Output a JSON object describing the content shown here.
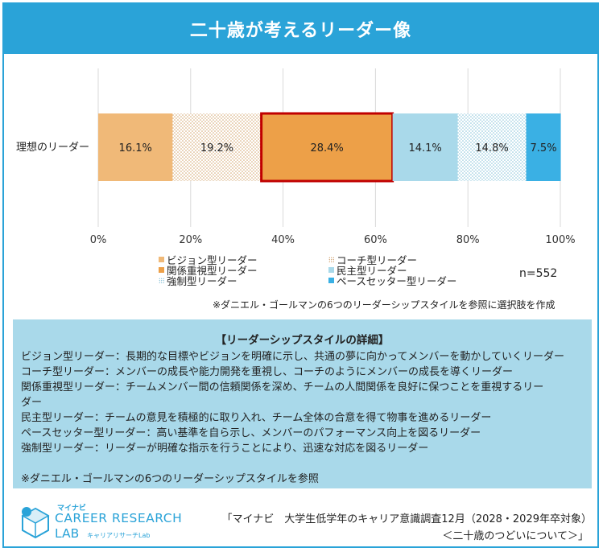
{
  "header": {
    "title": "二十歳が考えるリーダー像"
  },
  "chart_data": {
    "type": "stacked-bar-horizontal",
    "categories": [
      "理想のリーダー"
    ],
    "series": [
      {
        "name": "ビジョン型リーダー",
        "value": 16.1,
        "label": "16.1%",
        "color": "#f0b978",
        "pattern": "solid"
      },
      {
        "name": "コーチ型リーダー",
        "value": 19.2,
        "label": "19.2%",
        "color": "#e8bf8f",
        "pattern": "dots"
      },
      {
        "name": "関係重視型リーダー",
        "value": 28.4,
        "label": "28.4%",
        "color": "#eda048",
        "pattern": "solid",
        "highlight": true
      },
      {
        "name": "民主型リーダー",
        "value": 14.1,
        "label": "14.1%",
        "color": "#a9d9ea",
        "pattern": "solid"
      },
      {
        "name": "強制型リーダー",
        "value": 14.8,
        "label": "14.8%",
        "color": "#8fc9df",
        "pattern": "dots"
      },
      {
        "name": "ペースセッター型リーダー",
        "value": 7.5,
        "label": "7.5%",
        "color": "#3ab0e4",
        "pattern": "solid"
      }
    ],
    "x_ticks": [
      "0%",
      "20%",
      "40%",
      "60%",
      "80%",
      "100%"
    ],
    "xlim": [
      0,
      100
    ],
    "grid": true,
    "legend_position": "bottom"
  },
  "legend": {
    "items": [
      "ビジョン型リーダー",
      "コーチ型リーダー",
      "関係重視型リーダー",
      "民主型リーダー",
      "強制型リーダー",
      "ペースセッター型リーダー"
    ]
  },
  "sample": "n=552",
  "note": "※ダニエル・ゴールマンの6つのリーダーシップスタイルを参照に選択肢を作成",
  "details": {
    "title": "【リーダーシップスタイルの詳細】",
    "lines": [
      "ビジョン型リーダー：長期的な目標やビジョンを明確に示し、共通の夢に向かってメンバーを動かしていくリーダー",
      "コーチ型リーダー：メンバーの成長や能力開発を重視し、コーチのようにメンバーの成長を導くリーダー",
      "関係重視型リーダー：チームメンバー間の信頼関係を深め、チームの人間関係を良好に保つことを重視するリー",
      "ダー",
      "民主型リーダー：チームの意見を積極的に取り入れ、チーム全体の合意を得て物事を進めるリーダー",
      "ペースセッター型リーダー：高い基準を自ら示し、メンバーのパフォーマンス向上を図るリーダー",
      "強制型リーダー：リーダーが明確な指示を行うことにより、迅速な対応を図るリーダー"
    ],
    "reference": "※ダニエル・ゴールマンの6つのリーダーシップスタイルを参照"
  },
  "logo": {
    "brand": "マイナビ",
    "main": "CAREER RESEARCH",
    "lab": "LAB",
    "sub": "キャリアリサーチLab"
  },
  "source": {
    "line1": "「マイナビ　大学生低学年のキャリア意識調査12月（2028・2029年卒対象）",
    "line2": "＜二十歳のつどいについて＞」"
  }
}
